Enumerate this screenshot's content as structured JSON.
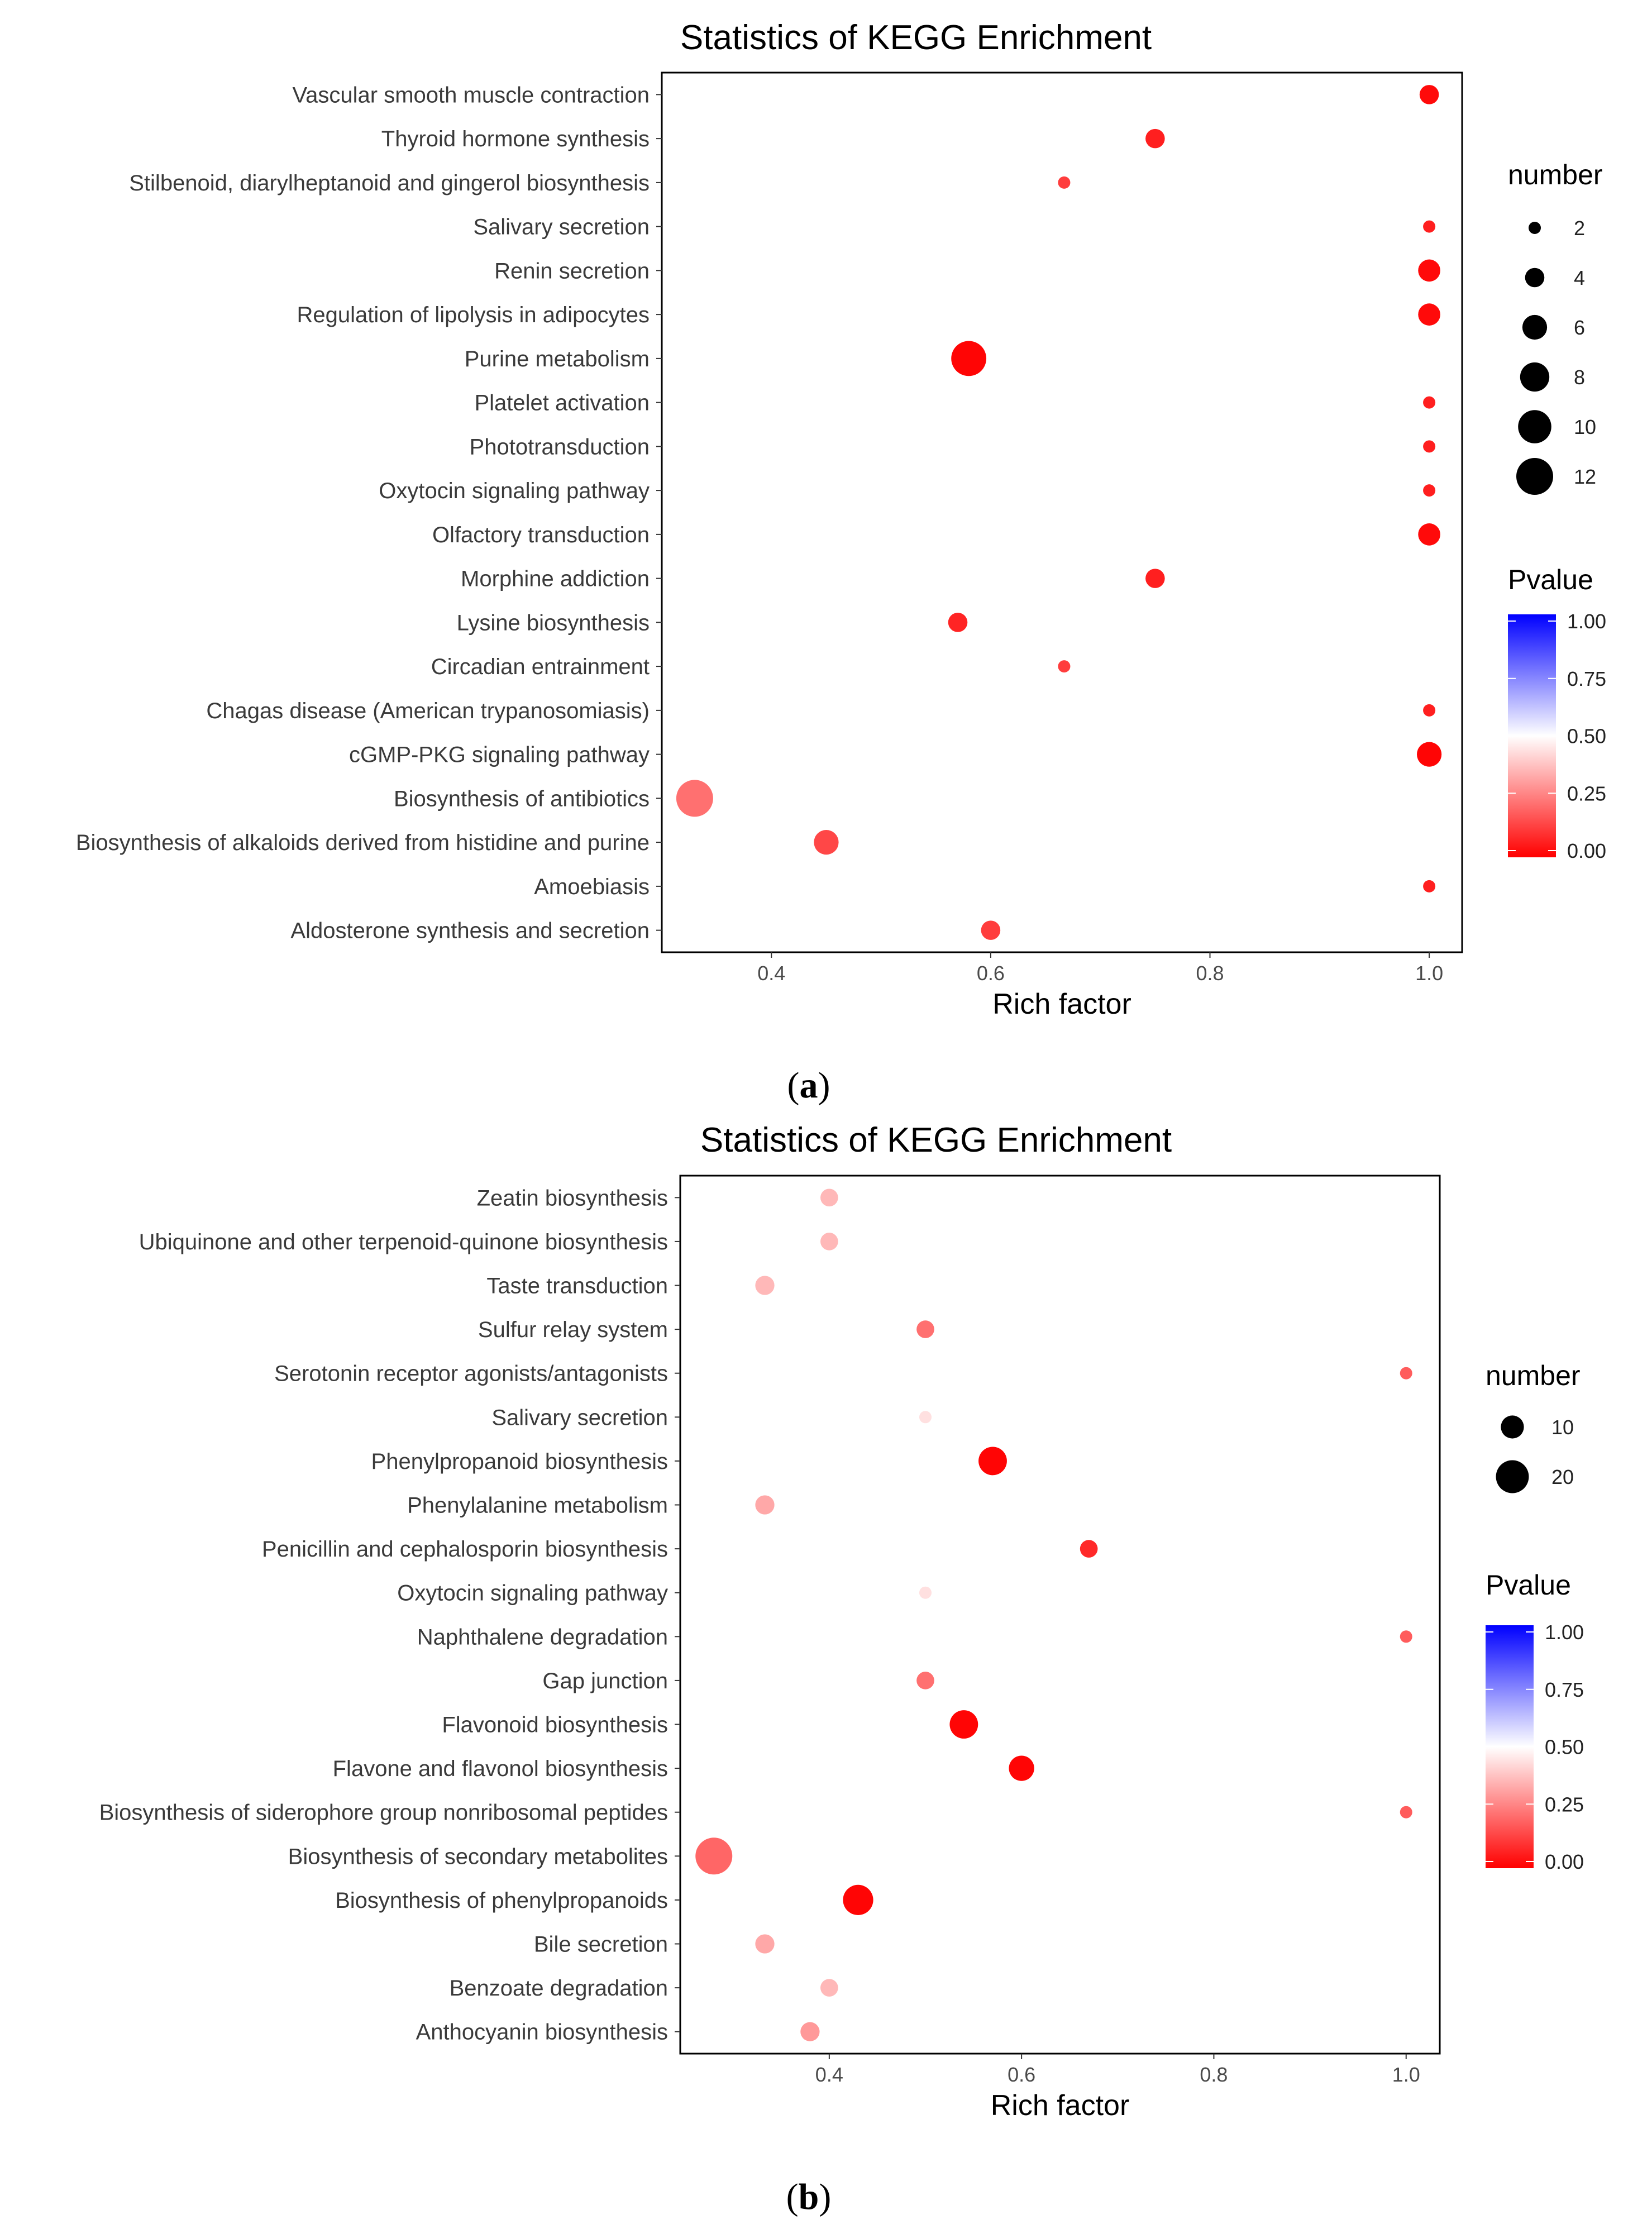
{
  "chart_data": [
    {
      "type": "scatter",
      "title": "Statistics of KEGG Enrichment",
      "xlabel": "Rich factor",
      "ylabel": "",
      "xlim": [
        0.3,
        1.03
      ],
      "xticks": [
        0.4,
        0.6,
        0.8,
        1.0
      ],
      "xtick_labels": [
        "0.4",
        "0.6",
        "0.8",
        "1.0"
      ],
      "grid": false,
      "caption": "(a)",
      "caption_letter": "a",
      "categories": [
        "Vascular smooth muscle contraction",
        "Thyroid hormone synthesis",
        "Stilbenoid, diarylheptanoid and gingerol biosynthesis",
        "Salivary secretion",
        "Renin secretion",
        "Regulation of lipolysis in adipocytes",
        "Purine metabolism",
        "Platelet activation",
        "Phototransduction",
        "Oxytocin signaling pathway",
        "Olfactory transduction",
        "Morphine addiction",
        "Lysine biosynthesis",
        "Circadian entrainment",
        "Chagas disease (American trypanosomiasis)",
        "cGMP-PKG signaling pathway",
        "Biosynthesis of antibiotics",
        "Biosynthesis of alkaloids derived from histidine and purine",
        "Amoebiasis",
        "Aldosterone synthesis and secretion"
      ],
      "points": [
        {
          "x": 1.0,
          "number": 4,
          "pvalue": 0.02
        },
        {
          "x": 0.75,
          "number": 4,
          "pvalue": 0.06
        },
        {
          "x": 0.667,
          "number": 2,
          "pvalue": 0.12
        },
        {
          "x": 1.0,
          "number": 2,
          "pvalue": 0.06
        },
        {
          "x": 1.0,
          "number": 5,
          "pvalue": 0.02
        },
        {
          "x": 1.0,
          "number": 5,
          "pvalue": 0.02
        },
        {
          "x": 0.58,
          "number": 11,
          "pvalue": 0.01
        },
        {
          "x": 1.0,
          "number": 2,
          "pvalue": 0.06
        },
        {
          "x": 1.0,
          "number": 2,
          "pvalue": 0.06
        },
        {
          "x": 1.0,
          "number": 2,
          "pvalue": 0.06
        },
        {
          "x": 1.0,
          "number": 5,
          "pvalue": 0.02
        },
        {
          "x": 0.75,
          "number": 4,
          "pvalue": 0.06
        },
        {
          "x": 0.57,
          "number": 4,
          "pvalue": 0.07
        },
        {
          "x": 0.667,
          "number": 2,
          "pvalue": 0.12
        },
        {
          "x": 1.0,
          "number": 2,
          "pvalue": 0.06
        },
        {
          "x": 1.0,
          "number": 6,
          "pvalue": 0.01
        },
        {
          "x": 0.33,
          "number": 12,
          "pvalue": 0.22
        },
        {
          "x": 0.45,
          "number": 6,
          "pvalue": 0.14
        },
        {
          "x": 1.0,
          "number": 2,
          "pvalue": 0.06
        },
        {
          "x": 0.6,
          "number": 4,
          "pvalue": 0.12
        }
      ],
      "size_legend": {
        "title": "number",
        "min_value": 2,
        "max_value": 12,
        "values": [
          2,
          4,
          6,
          8,
          10,
          12
        ],
        "labels": [
          "2",
          "4",
          "6",
          "8",
          "10",
          "12"
        ]
      },
      "color_legend": {
        "title": "Pvalue",
        "ticks": [
          1.0,
          0.75,
          0.5,
          0.25,
          0.0
        ],
        "labels": [
          "1.00",
          "0.75",
          "0.50",
          "0.25",
          "0.00"
        ],
        "colors": {
          "low": "#ff0000",
          "mid": "#ffffff",
          "high": "#0000ff"
        },
        "midpoint": 0.5
      }
    },
    {
      "type": "scatter",
      "title": "Statistics of KEGG Enrichment",
      "xlabel": "Rich factor",
      "ylabel": "",
      "xlim": [
        0.245,
        1.035
      ],
      "xticks": [
        0.4,
        0.6,
        0.8,
        1.0
      ],
      "xtick_labels": [
        "0.4",
        "0.6",
        "0.8",
        "1.0"
      ],
      "grid": false,
      "caption": "(b)",
      "caption_letter": "b",
      "categories": [
        "Zeatin biosynthesis",
        "Ubiquinone and other terpenoid-quinone biosynthesis",
        "Taste transduction",
        "Sulfur relay system",
        "Serotonin receptor agonists/antagonists",
        "Salivary secretion",
        "Phenylpropanoid biosynthesis",
        "Phenylalanine metabolism",
        "Penicillin and cephalosporin biosynthesis",
        "Oxytocin signaling pathway",
        "Naphthalene degradation",
        "Gap junction",
        "Flavonoid biosynthesis",
        "Flavone and flavonol biosynthesis",
        "Biosynthesis of siderophore group nonribosomal peptides",
        "Biosynthesis of secondary metabolites",
        "Biosynthesis of phenylpropanoids",
        "Bile secretion",
        "Benzoate degradation",
        "Anthocyanin biosynthesis"
      ],
      "points": [
        {
          "x": 0.4,
          "number": 6,
          "pvalue": 0.36
        },
        {
          "x": 0.4,
          "number": 6,
          "pvalue": 0.36
        },
        {
          "x": 0.333,
          "number": 7,
          "pvalue": 0.36
        },
        {
          "x": 0.5,
          "number": 6,
          "pvalue": 0.22
        },
        {
          "x": 1.0,
          "number": 3,
          "pvalue": 0.18
        },
        {
          "x": 0.5,
          "number": 3,
          "pvalue": 0.44
        },
        {
          "x": 0.57,
          "number": 15,
          "pvalue": 0.01
        },
        {
          "x": 0.333,
          "number": 7,
          "pvalue": 0.33
        },
        {
          "x": 0.67,
          "number": 6,
          "pvalue": 0.08
        },
        {
          "x": 0.5,
          "number": 3,
          "pvalue": 0.44
        },
        {
          "x": 1.0,
          "number": 3,
          "pvalue": 0.18
        },
        {
          "x": 0.5,
          "number": 6,
          "pvalue": 0.22
        },
        {
          "x": 0.54,
          "number": 15,
          "pvalue": 0.01
        },
        {
          "x": 0.6,
          "number": 12,
          "pvalue": 0.01
        },
        {
          "x": 1.0,
          "number": 3,
          "pvalue": 0.18
        },
        {
          "x": 0.28,
          "number": 25,
          "pvalue": 0.2
        },
        {
          "x": 0.43,
          "number": 17,
          "pvalue": 0.01
        },
        {
          "x": 0.333,
          "number": 7,
          "pvalue": 0.33
        },
        {
          "x": 0.4,
          "number": 6,
          "pvalue": 0.36
        },
        {
          "x": 0.38,
          "number": 7,
          "pvalue": 0.3
        }
      ],
      "size_legend": {
        "title": "number",
        "min_value": 3,
        "max_value": 25,
        "values": [
          10,
          20
        ],
        "labels": [
          "10",
          "20"
        ]
      },
      "color_legend": {
        "title": "Pvalue",
        "ticks": [
          1.0,
          0.75,
          0.5,
          0.25,
          0.0
        ],
        "labels": [
          "1.00",
          "0.75",
          "0.50",
          "0.25",
          "0.00"
        ],
        "colors": {
          "low": "#ff0000",
          "mid": "#ffffff",
          "high": "#0000ff"
        },
        "midpoint": 0.5
      }
    }
  ]
}
